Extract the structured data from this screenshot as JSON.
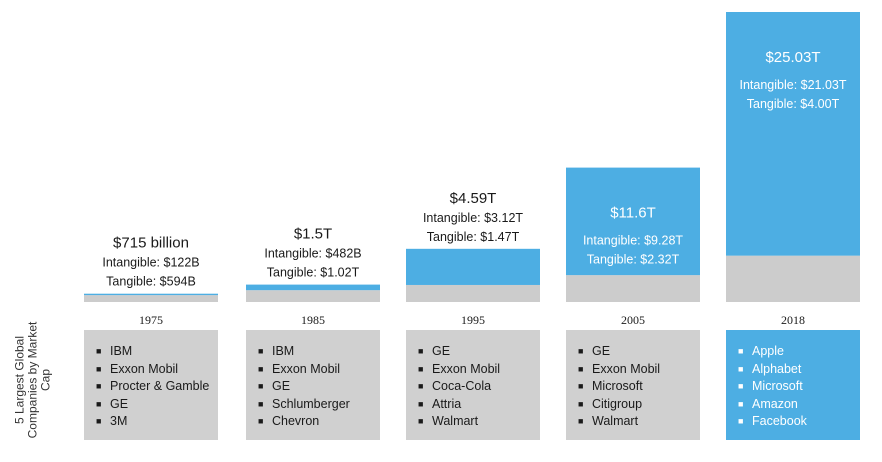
{
  "chart_data": {
    "type": "bar",
    "stacked": true,
    "categories": [
      "1975",
      "1985",
      "1995",
      "2005",
      "2018"
    ],
    "series": [
      {
        "name": "Tangible",
        "color": "#cccccc",
        "values": [
          0.594,
          1.02,
          1.47,
          2.32,
          4.0
        ]
      },
      {
        "name": "Intangible",
        "color": "#4daee3",
        "values": [
          0.122,
          0.482,
          3.12,
          9.28,
          21.03
        ]
      }
    ],
    "totals": [
      0.715,
      1.5,
      4.59,
      11.6,
      25.03
    ],
    "unit": "trillion USD",
    "ylim": [
      0,
      25.03
    ],
    "labels": [
      {
        "total": "$715 billion",
        "intangible": "Intangible: $122B",
        "tangible": "Tangible: $594B"
      },
      {
        "total": "$1.5T",
        "intangible": "Intangible: $482B",
        "tangible": "Tangible: $1.02T"
      },
      {
        "total": "$4.59T",
        "intangible": "Intangible: $3.12T",
        "tangible": "Tangible: $1.47T"
      },
      {
        "total": "$11.6T",
        "intangible": "Intangible: $9.28T",
        "tangible": "Tangible: $2.32T"
      },
      {
        "total": "$25.03T",
        "intangible": "Intangible: $21.03T",
        "tangible": "Tangible: $4.00T"
      }
    ]
  },
  "side_label": "5 Largest Global Companies by Market Cap",
  "bullet_char": "■",
  "companies": [
    {
      "year": "1975",
      "list": [
        "IBM",
        "Exxon Mobil",
        "Procter & Gamble",
        "GE",
        "3M"
      ]
    },
    {
      "year": "1985",
      "list": [
        "IBM",
        "Exxon Mobil",
        "GE",
        "Schlumberger",
        "Chevron"
      ]
    },
    {
      "year": "1995",
      "list": [
        "GE",
        "Exxon Mobil",
        "Coca-Cola",
        "Attria",
        "Walmart"
      ]
    },
    {
      "year": "2005",
      "list": [
        "GE",
        "Exxon Mobil",
        "Microsoft",
        "Citigroup",
        "Walmart"
      ]
    },
    {
      "year": "2018",
      "list": [
        "Apple",
        "Alphabet",
        "Microsoft",
        "Amazon",
        "Facebook"
      ]
    }
  ]
}
